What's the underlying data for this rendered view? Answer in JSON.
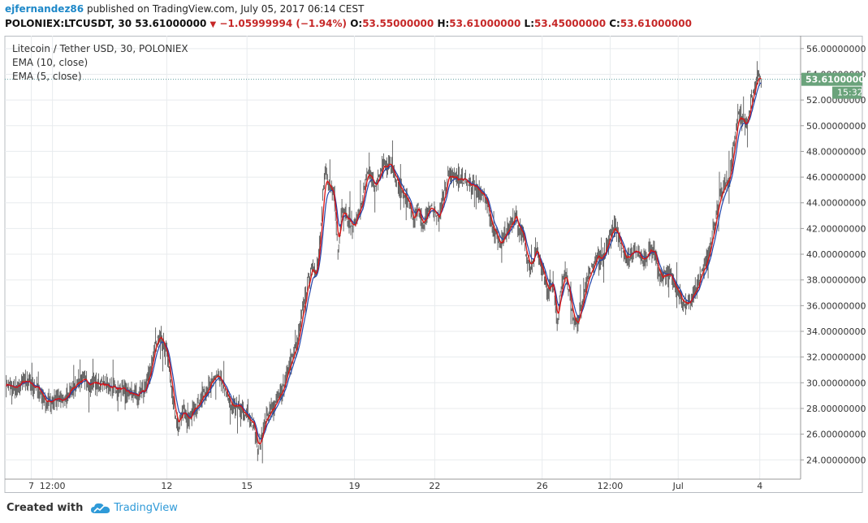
{
  "header": {
    "author": "ejfernandez86",
    "published": "published on TradingView.com, July 05, 2017 06:14 CEST",
    "symbol": "POLONIEX:LTCUSDT, 30",
    "last": "53.61000000",
    "change": "−1.05999994 (−1.94%)",
    "open_label": "O:",
    "open": "53.55000000",
    "high_label": "H:",
    "high": "53.61000000",
    "low_label": "L:",
    "low": "53.45000000",
    "close_label": "C:",
    "close": "53.61000000"
  },
  "legend": {
    "title": "Litecoin / Tether USD, 30, POLONIEX",
    "ema10": "EMA (10, close)",
    "ema5": "EMA (5, close)"
  },
  "price_tag": {
    "price": "53.61000000",
    "countdown": "15:32"
  },
  "footer": {
    "created_with": "Created with",
    "brand": "TradingView"
  },
  "colors": {
    "candle": "#5b5b5b",
    "ema10": "#2244aa",
    "ema5": "#dd1111",
    "tag": "#6aa37b",
    "grid": "#e8ebee",
    "brand": "#2f9ad8"
  },
  "chart_data": {
    "type": "line",
    "title": "Litecoin / Tether USD, 30, POLONIEX",
    "ylim": [
      22.5,
      57
    ],
    "y_ticks": [
      "24.00000000",
      "26.00000000",
      "28.00000000",
      "30.00000000",
      "32.00000000",
      "34.00000000",
      "36.00000000",
      "38.00000000",
      "40.00000000",
      "42.00000000",
      "44.00000000",
      "46.00000000",
      "48.00000000",
      "50.00000000",
      "52.00000000",
      "54.00000000",
      "56.00000000"
    ],
    "x_ticks": [
      {
        "label": "7",
        "t": 0.22
      },
      {
        "label": "12:00",
        "t": 1.0
      },
      {
        "label": "12",
        "t": 5.2
      },
      {
        "label": "15",
        "t": 8.15
      },
      {
        "label": "19",
        "t": 12.1
      },
      {
        "label": "22",
        "t": 15.05
      },
      {
        "label": "26",
        "t": 19.0
      },
      {
        "label": "12:00",
        "t": 21.5
      },
      {
        "label": "Jul",
        "t": 24.0
      },
      {
        "label": "4",
        "t": 27.0
      }
    ],
    "t_range": [
      -0.75,
      28.5
    ],
    "series": [
      {
        "name": "EMA (5, close)",
        "points": [
          [
            -0.7,
            30.0
          ],
          [
            -0.4,
            29.5
          ],
          [
            -0.1,
            30.1
          ],
          [
            0.2,
            29.9
          ],
          [
            0.5,
            29.5
          ],
          [
            0.8,
            28.4
          ],
          [
            1.1,
            28.8
          ],
          [
            1.4,
            28.5
          ],
          [
            1.7,
            29.6
          ],
          [
            2.0,
            30.2
          ],
          [
            2.3,
            30.0
          ],
          [
            2.6,
            30.0
          ],
          [
            2.9,
            29.8
          ],
          [
            3.2,
            29.7
          ],
          [
            3.5,
            29.5
          ],
          [
            3.8,
            29.2
          ],
          [
            4.1,
            29.0
          ],
          [
            4.4,
            29.4
          ],
          [
            4.6,
            31.0
          ],
          [
            4.8,
            33.2
          ],
          [
            4.95,
            33.8
          ],
          [
            5.1,
            33.0
          ],
          [
            5.2,
            32.2
          ],
          [
            5.35,
            30.0
          ],
          [
            5.5,
            27.5
          ],
          [
            5.65,
            26.8
          ],
          [
            5.8,
            28.0
          ],
          [
            6.0,
            27.0
          ],
          [
            6.2,
            28.0
          ],
          [
            6.4,
            28.5
          ],
          [
            6.6,
            29.2
          ],
          [
            6.8,
            30.0
          ],
          [
            7.0,
            30.3
          ],
          [
            7.1,
            30.7
          ],
          [
            7.3,
            29.5
          ],
          [
            7.5,
            28.5
          ],
          [
            7.7,
            27.9
          ],
          [
            7.85,
            28.4
          ],
          [
            8.0,
            27.6
          ],
          [
            8.2,
            27.2
          ],
          [
            8.4,
            26.8
          ],
          [
            8.55,
            24.7
          ],
          [
            8.7,
            26.0
          ],
          [
            8.85,
            27.3
          ],
          [
            9.0,
            27.8
          ],
          [
            9.2,
            28.3
          ],
          [
            9.35,
            29.0
          ],
          [
            9.5,
            29.8
          ],
          [
            9.6,
            30.6
          ],
          [
            9.8,
            31.9
          ],
          [
            10.0,
            33.0
          ],
          [
            10.2,
            35.5
          ],
          [
            10.4,
            38.0
          ],
          [
            10.55,
            39.0
          ],
          [
            10.7,
            38.4
          ],
          [
            10.8,
            40.5
          ],
          [
            10.95,
            45.0
          ],
          [
            11.05,
            46.3
          ],
          [
            11.2,
            45.0
          ],
          [
            11.35,
            44.5
          ],
          [
            11.5,
            40.0
          ],
          [
            11.65,
            44.0
          ],
          [
            11.8,
            43.0
          ],
          [
            11.95,
            42.5
          ],
          [
            12.1,
            42.0
          ],
          [
            12.25,
            43.5
          ],
          [
            12.4,
            44.0
          ],
          [
            12.55,
            46.5
          ],
          [
            12.7,
            46.0
          ],
          [
            12.85,
            45.0
          ],
          [
            13.0,
            46.0
          ],
          [
            13.2,
            47.0
          ],
          [
            13.4,
            47.0
          ],
          [
            13.6,
            46.0
          ],
          [
            13.8,
            45.0
          ],
          [
            13.95,
            44.5
          ],
          [
            14.1,
            44.0
          ],
          [
            14.3,
            42.5
          ],
          [
            14.45,
            44.0
          ],
          [
            14.6,
            42.2
          ],
          [
            14.75,
            43.0
          ],
          [
            14.9,
            44.0
          ],
          [
            15.05,
            43.2
          ],
          [
            15.2,
            42.7
          ],
          [
            15.4,
            44.5
          ],
          [
            15.55,
            46.3
          ],
          [
            15.7,
            46.0
          ],
          [
            15.9,
            45.8
          ],
          [
            16.1,
            45.8
          ],
          [
            16.3,
            45.5
          ],
          [
            16.5,
            45.2
          ],
          [
            16.7,
            45.0
          ],
          [
            16.85,
            44.5
          ],
          [
            17.0,
            44.0
          ],
          [
            17.15,
            42.0
          ],
          [
            17.3,
            41.5
          ],
          [
            17.45,
            40.5
          ],
          [
            17.6,
            41.5
          ],
          [
            17.75,
            42.0
          ],
          [
            17.9,
            42.5
          ],
          [
            18.05,
            43.0
          ],
          [
            18.15,
            42.0
          ],
          [
            18.3,
            41.5
          ],
          [
            18.45,
            39.5
          ],
          [
            18.6,
            39.0
          ],
          [
            18.8,
            40.5
          ],
          [
            18.95,
            39.0
          ],
          [
            19.1,
            38.0
          ],
          [
            19.25,
            37.0
          ],
          [
            19.4,
            38.0
          ],
          [
            19.55,
            34.5
          ],
          [
            19.7,
            37.5
          ],
          [
            19.85,
            38.5
          ],
          [
            20.0,
            37.0
          ],
          [
            20.15,
            35.0
          ],
          [
            20.3,
            34.5
          ],
          [
            20.45,
            36.0
          ],
          [
            20.6,
            37.5
          ],
          [
            20.75,
            38.5
          ],
          [
            20.9,
            39.0
          ],
          [
            21.05,
            40.0
          ],
          [
            21.2,
            39.5
          ],
          [
            21.35,
            40.5
          ],
          [
            21.5,
            41.5
          ],
          [
            21.65,
            42.0
          ],
          [
            21.8,
            41.5
          ],
          [
            21.95,
            40.5
          ],
          [
            22.1,
            39.5
          ],
          [
            22.25,
            40.0
          ],
          [
            22.4,
            40.5
          ],
          [
            22.55,
            40.0
          ],
          [
            22.7,
            39.5
          ],
          [
            22.85,
            40.0
          ],
          [
            23.0,
            40.5
          ],
          [
            23.15,
            40.0
          ],
          [
            23.3,
            38.5
          ],
          [
            23.45,
            38.2
          ],
          [
            23.6,
            38.5
          ],
          [
            23.8,
            38.0
          ],
          [
            23.95,
            37.2
          ],
          [
            24.1,
            36.5
          ],
          [
            24.25,
            36.0
          ],
          [
            24.4,
            36.2
          ],
          [
            24.55,
            37.0
          ],
          [
            24.7,
            37.5
          ],
          [
            24.85,
            38.5
          ],
          [
            25.0,
            39.0
          ],
          [
            25.15,
            40.5
          ],
          [
            25.3,
            42.0
          ],
          [
            25.45,
            43.5
          ],
          [
            25.6,
            45.0
          ],
          [
            25.75,
            45.5
          ],
          [
            25.9,
            46.0
          ],
          [
            26.05,
            48.5
          ],
          [
            26.2,
            51.0
          ],
          [
            26.35,
            50.5
          ],
          [
            26.5,
            50.0
          ],
          [
            26.65,
            51.5
          ],
          [
            26.8,
            53.0
          ],
          [
            26.95,
            54.0
          ],
          [
            27.05,
            53.61
          ]
        ]
      }
    ]
  }
}
